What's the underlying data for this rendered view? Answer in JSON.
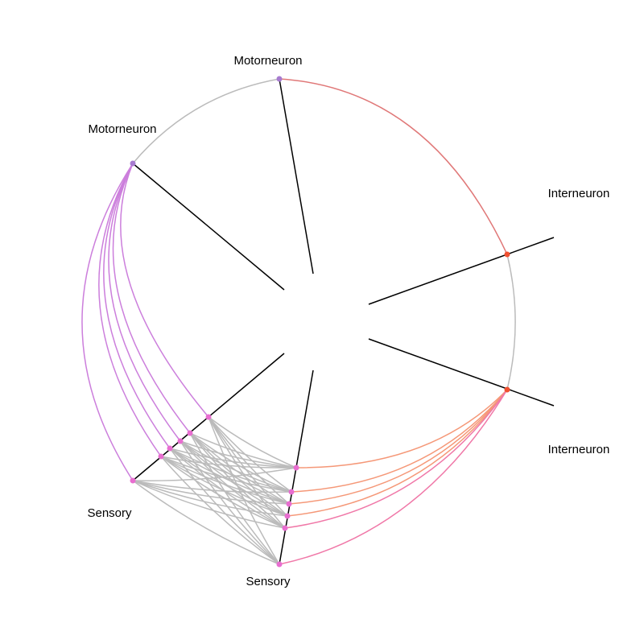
{
  "axis_labels": {
    "motor_a": "Motorneuron",
    "motor_b": "Motorneuron",
    "inter_a": "Interneuron",
    "inter_b": "Interneuron",
    "sensory_a": "Sensory",
    "sensory_b": "Sensory"
  },
  "node_groups": [
    {
      "group": "Motorneuron",
      "count": 2,
      "color": "#a77bd0"
    },
    {
      "group": "Interneuron",
      "count": 2,
      "color": "#f05030"
    },
    {
      "group": "Sensory",
      "count": 12,
      "color": "#e86dd0"
    }
  ],
  "edge_colors": {
    "within_group": "#bbbbbb",
    "motor_to_inter": "#e07878",
    "motor_to_sensory": "#cc7fdc",
    "inter_to_sensory": "#f59878",
    "inter_to_sensory_alt": "#f078a8"
  }
}
